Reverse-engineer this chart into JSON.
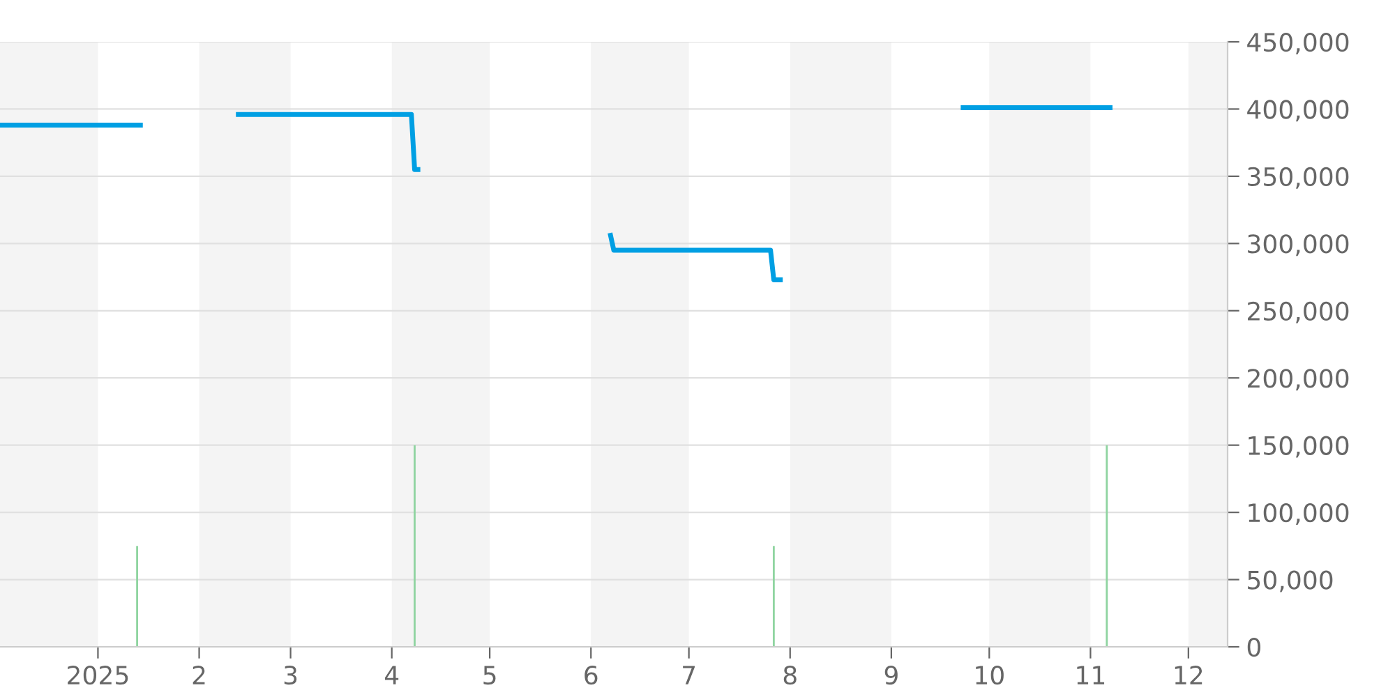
{
  "chart_data": {
    "type": "line",
    "xlim": [
      "2024-12-02",
      "2025-12-13"
    ],
    "xticks": [
      {
        "value": "2025-01-01",
        "label": "2025"
      },
      {
        "value": "2025-02-01",
        "label": "2"
      },
      {
        "value": "2025-03-01",
        "label": "3"
      },
      {
        "value": "2025-04-01",
        "label": "4"
      },
      {
        "value": "2025-05-01",
        "label": "5"
      },
      {
        "value": "2025-06-01",
        "label": "6"
      },
      {
        "value": "2025-07-01",
        "label": "7"
      },
      {
        "value": "2025-08-01",
        "label": "8"
      },
      {
        "value": "2025-09-01",
        "label": "9"
      },
      {
        "value": "2025-10-01",
        "label": "10"
      },
      {
        "value": "2025-11-01",
        "label": "11"
      },
      {
        "value": "2025-12-01",
        "label": "12"
      }
    ],
    "ylim": [
      0,
      450000
    ],
    "yticks": [
      {
        "value": 0,
        "label": "0"
      },
      {
        "value": 50000,
        "label": "50,000"
      },
      {
        "value": 100000,
        "label": "100,000"
      },
      {
        "value": 150000,
        "label": "150,000"
      },
      {
        "value": 200000,
        "label": "200,000"
      },
      {
        "value": 250000,
        "label": "250,000"
      },
      {
        "value": 300000,
        "label": "300,000"
      },
      {
        "value": 350000,
        "label": "350,000"
      },
      {
        "value": 400000,
        "label": "400,000"
      },
      {
        "value": 450000,
        "label": "450,000"
      }
    ],
    "grid": "y",
    "bands": [
      {
        "axis": "x",
        "from": "2024-12-02",
        "to": "2025-01-01",
        "color": "#f4f4f4"
      },
      {
        "axis": "x",
        "from": "2025-02-01",
        "to": "2025-03-01",
        "color": "#f4f4f4"
      },
      {
        "axis": "x",
        "from": "2025-04-01",
        "to": "2025-05-01",
        "color": "#f4f4f4"
      },
      {
        "axis": "x",
        "from": "2025-06-01",
        "to": "2025-07-01",
        "color": "#f4f4f4"
      },
      {
        "axis": "x",
        "from": "2025-08-01",
        "to": "2025-09-01",
        "color": "#f4f4f4"
      },
      {
        "axis": "x",
        "from": "2025-10-01",
        "to": "2025-11-01",
        "color": "#f4f4f4"
      },
      {
        "axis": "x",
        "from": "2025-12-01",
        "to": "2025-12-13",
        "color": "#f4f4f4"
      }
    ],
    "series": [
      {
        "type": "bar",
        "color": "#8fd4a0",
        "x": [
          "2025-01-13",
          "2025-04-08",
          "2025-07-27",
          "2025-11-06"
        ],
        "values": [
          75000,
          150000,
          75000,
          150000
        ]
      },
      {
        "type": "line",
        "color": "#009fe3",
        "x": [
          "2024-12-02",
          "2025-01-14",
          "2025-01-30",
          "2025-02-13",
          "2025-04-07",
          "2025-04-08",
          "2025-04-09",
          "2025-05-15",
          "2025-06-07",
          "2025-06-08",
          "2025-07-26",
          "2025-07-27",
          "2025-07-29",
          "2025-08-20",
          "2025-09-23",
          "2025-11-07"
        ],
        "values": [
          388000,
          388000,
          null,
          396000,
          396000,
          355000,
          355000,
          null,
          306000,
          295000,
          295000,
          273000,
          273000,
          null,
          401000,
          401000
        ]
      }
    ]
  }
}
